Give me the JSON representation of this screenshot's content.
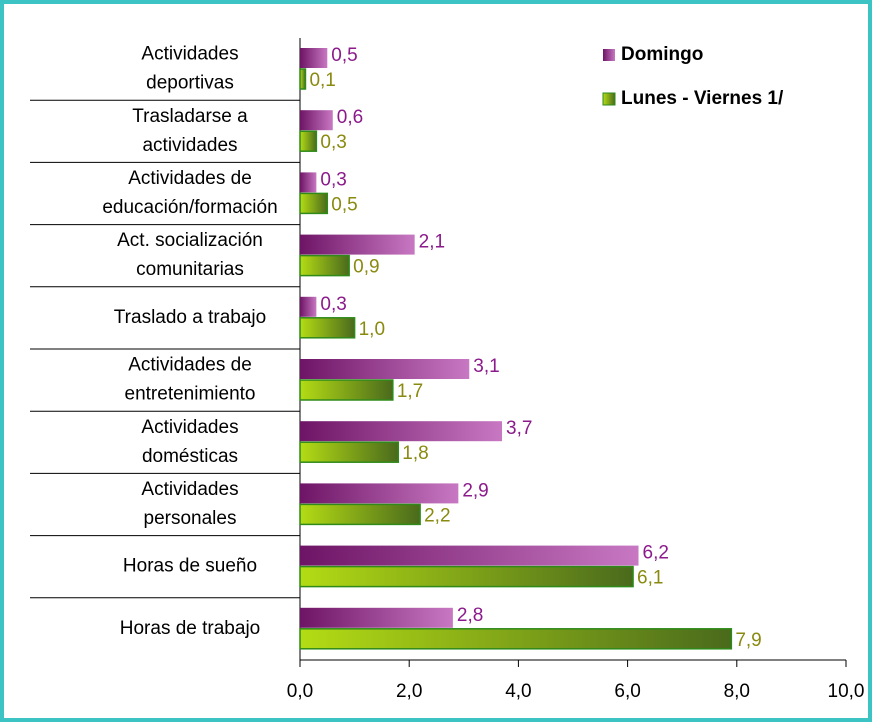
{
  "chart_data": {
    "type": "hbar",
    "categories": [
      "Actividades\ndeportivas",
      "Trasladarse a\nactividades",
      "Actividades de\neducación/formación",
      "Act. socialización\ncomunitarias",
      "Traslado a trabajo",
      "Actividades de\nentretenimiento",
      "Actividades\ndomésticas",
      "Actividades\npersonales",
      "Horas de sueño",
      "Horas de trabajo"
    ],
    "series": [
      {
        "name": "Domingo",
        "color": "#9b2f94",
        "values": [
          0.5,
          0.6,
          0.3,
          2.1,
          0.3,
          3.1,
          3.7,
          2.9,
          6.2,
          2.8
        ],
        "value_labels": [
          "0,5",
          "0,6",
          "0,3",
          "2,1",
          "0,3",
          "3,1",
          "3,7",
          "2,9",
          "6,2",
          "2,8"
        ]
      },
      {
        "name": "Lunes - Viernes 1/",
        "color": "#7fb800",
        "values": [
          0.1,
          0.3,
          0.5,
          0.9,
          1.0,
          1.7,
          1.8,
          2.2,
          6.1,
          7.9
        ],
        "value_labels": [
          "0,1",
          "0,3",
          "0,5",
          "0,9",
          "1,0",
          "1,7",
          "1,8",
          "2,2",
          "6,1",
          "7,9"
        ]
      }
    ],
    "xlim": [
      0,
      10
    ],
    "xticks": [
      {
        "value": 0,
        "label": "0,0"
      },
      {
        "value": 2,
        "label": "2,0"
      },
      {
        "value": 4,
        "label": "4,0"
      },
      {
        "value": 6,
        "label": "6,0"
      },
      {
        "value": 8,
        "label": "8,0"
      },
      {
        "value": 10,
        "label": "10,0"
      }
    ],
    "legend": "top-right"
  }
}
